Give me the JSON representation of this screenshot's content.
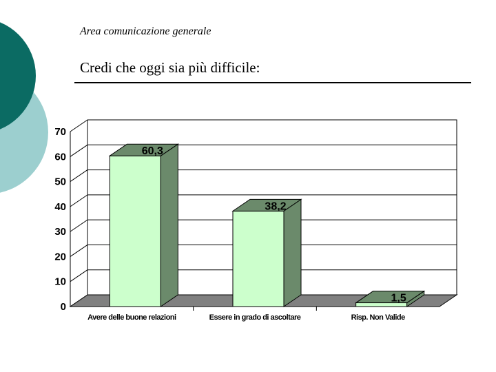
{
  "header": {
    "subtitle": "Area comunicazione generale",
    "title": "Credi che oggi sia più difficile:"
  },
  "colors": {
    "circle_dark": "#0b6b63",
    "circle_light": "#9ccfcf",
    "bar_front": "#ccffcc",
    "bar_side": "#6b8a6b",
    "floor": "#808080"
  },
  "chart_data": {
    "type": "bar",
    "categories": [
      "Avere delle buone relazioni",
      "Essere in grado di ascoltare",
      "Risp. Non Valide"
    ],
    "values": [
      60.3,
      38.2,
      1.5
    ],
    "value_labels": [
      "60,3",
      "38,2",
      "1,5"
    ],
    "ylim": [
      0,
      70
    ],
    "yticks": [
      0,
      10,
      20,
      30,
      40,
      50,
      60,
      70
    ],
    "grid": true,
    "legend": "none",
    "xlabel": "",
    "ylabel": ""
  }
}
